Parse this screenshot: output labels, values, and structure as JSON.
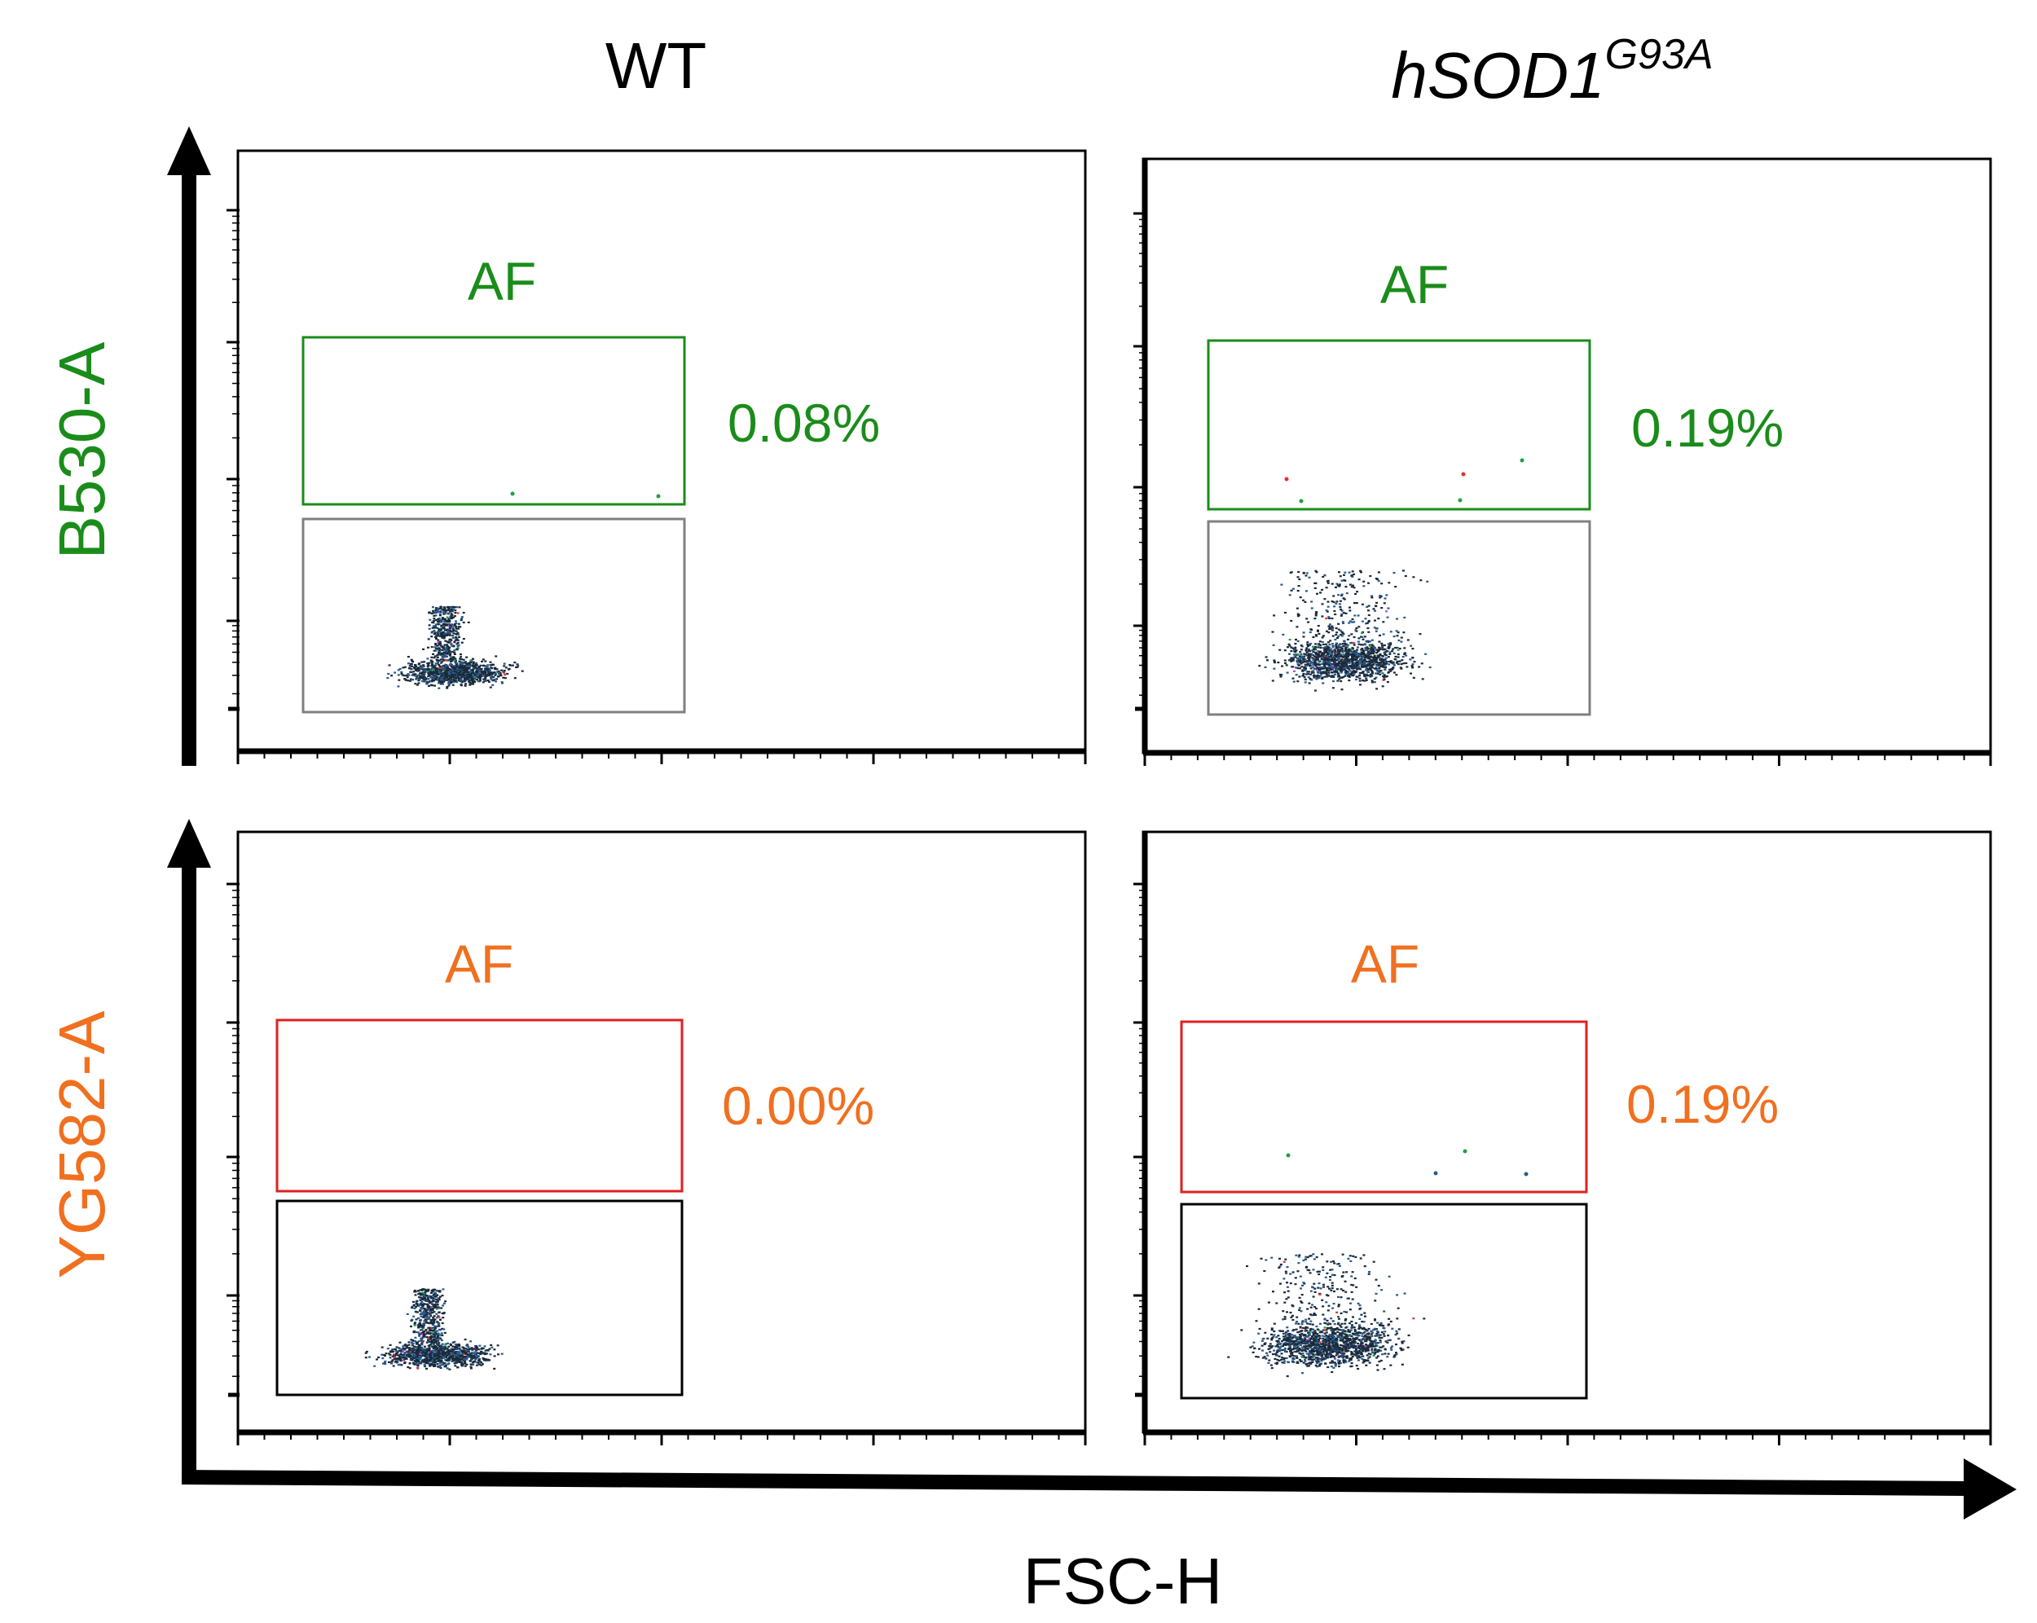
{
  "chart_data": {
    "type": "scatter",
    "title": "",
    "x_axis_label": "FSC-H",
    "columns": [
      "WT",
      "hSOD1"
    ],
    "column_superscript": {
      "hSOD1": "G93A"
    },
    "rows": [
      {
        "y_axis_label": "B530-A",
        "color": "#1a8c1a",
        "gate_color": "#1a8c1a"
      },
      {
        "y_axis_label": "YG582-A",
        "color": "#f07020",
        "gate_color": "#e02020"
      }
    ],
    "panels": [
      {
        "id": "wt-b530",
        "column": "WT",
        "channel": "B530-A",
        "gate_label": "AF",
        "gate_percent": "0.08%",
        "gate_fraction_percent": 0.08,
        "spread": "compact"
      },
      {
        "id": "sod-b530",
        "column": "hSOD1 G93A",
        "channel": "B530-A",
        "gate_label": "AF",
        "gate_percent": "0.19%",
        "gate_fraction_percent": 0.19,
        "spread": "wide"
      },
      {
        "id": "wt-yg582",
        "column": "WT",
        "channel": "YG582-A",
        "gate_label": "AF",
        "gate_percent": "0.00%",
        "gate_fraction_percent": 0.0,
        "spread": "compact"
      },
      {
        "id": "sod-yg582",
        "column": "hSOD1 G93A",
        "channel": "YG582-A",
        "gate_label": "AF",
        "gate_percent": "0.19%",
        "gate_fraction_percent": 0.19,
        "spread": "wide"
      }
    ],
    "grid": false,
    "legend": "none"
  },
  "colors": {
    "axis": "#000000",
    "frame": "#000000",
    "lower_gate": "#808080",
    "dot_dark": "#1a2a3a",
    "dot_blue": "#2a5a8a",
    "dot_accent": [
      "#d040d0",
      "#e03030",
      "#20a040"
    ]
  }
}
